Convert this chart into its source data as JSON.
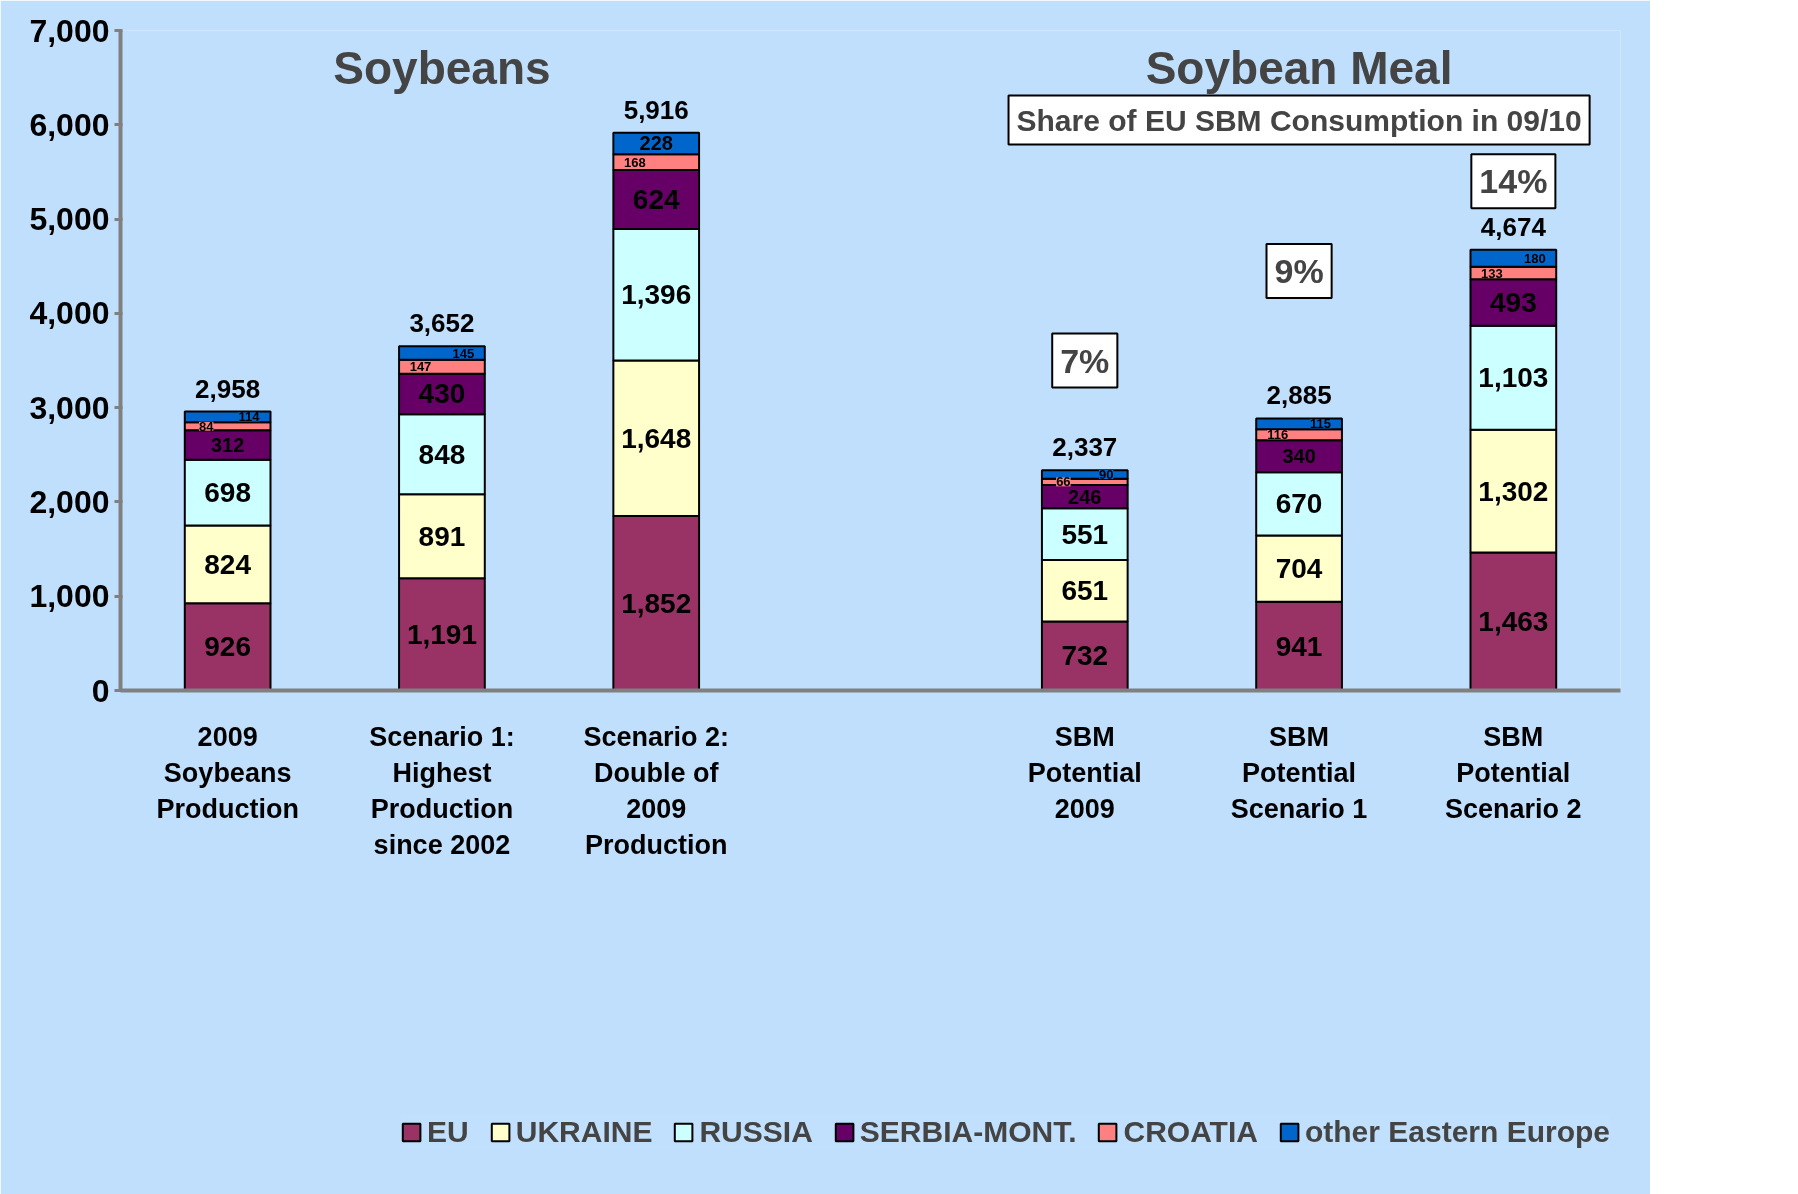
{
  "chart_data": {
    "type": "bar",
    "stacked": true,
    "categories": [
      "2009 Soybeans Production",
      "Scenario 1: Highest Production since 2002",
      "Scenario 2: Double of 2009 Production",
      null,
      "SBM Potential 2009",
      "SBM Potential Scenario 1",
      "SBM Potential Scenario 2"
    ],
    "series": [
      {
        "name": "EU",
        "color": "#993366",
        "values": [
          926,
          1191,
          1852,
          null,
          732,
          941,
          1463
        ],
        "value_labels": [
          "926",
          "1,191",
          "1,852",
          null,
          "732",
          "941",
          "1,463"
        ]
      },
      {
        "name": "UKRAINE",
        "color": "#ffffcc",
        "values": [
          824,
          891,
          1648,
          null,
          651,
          704,
          1302
        ],
        "value_labels": [
          "824",
          "891",
          "1,648",
          null,
          "651",
          "704",
          "1,302"
        ]
      },
      {
        "name": "RUSSIA",
        "color": "#ccffff",
        "values": [
          698,
          848,
          1396,
          null,
          551,
          670,
          1103
        ],
        "value_labels": [
          "698",
          "848",
          "1,396",
          null,
          "551",
          "670",
          "1,103"
        ]
      },
      {
        "name": "SERBIA-MONT.",
        "color": "#660066",
        "values": [
          312,
          430,
          624,
          null,
          246,
          340,
          493
        ],
        "value_labels": [
          "312",
          "430",
          "624",
          null,
          "246",
          "340",
          "493"
        ]
      },
      {
        "name": "CROATIA",
        "color": "#ff8080",
        "values": [
          84,
          147,
          168,
          null,
          66,
          116,
          133
        ],
        "value_labels": [
          "84",
          "147",
          "168",
          null,
          "66",
          "116",
          "133"
        ]
      },
      {
        "name": "other Eastern Europe",
        "color": "#0066cc",
        "values": [
          114,
          145,
          228,
          null,
          90,
          115,
          180
        ],
        "value_labels": [
          "114",
          "145",
          "228",
          null,
          "90",
          "115",
          "180"
        ]
      }
    ],
    "totals": [
      "2,958",
      "3,652",
      "5,916",
      null,
      "2,337",
      "2,885",
      "4,674"
    ],
    "ylim": [
      0,
      7000
    ],
    "yticks": [
      {
        "value": 0,
        "label": "0"
      },
      {
        "value": 1000,
        "label": "1,000"
      },
      {
        "value": 2000,
        "label": "2,000"
      },
      {
        "value": 3000,
        "label": "3,000"
      },
      {
        "value": 4000,
        "label": "4,000"
      },
      {
        "value": 5000,
        "label": "5,000"
      },
      {
        "value": 6000,
        "label": "6,000"
      },
      {
        "value": 7000,
        "label": "7,000"
      }
    ],
    "grid": false,
    "legend": "bottom",
    "annotations": [
      "Soybeans",
      "Soybean Meal",
      "Share of EU SBM Consumption in 09/10",
      "7%",
      "9%",
      "14%"
    ]
  }
}
